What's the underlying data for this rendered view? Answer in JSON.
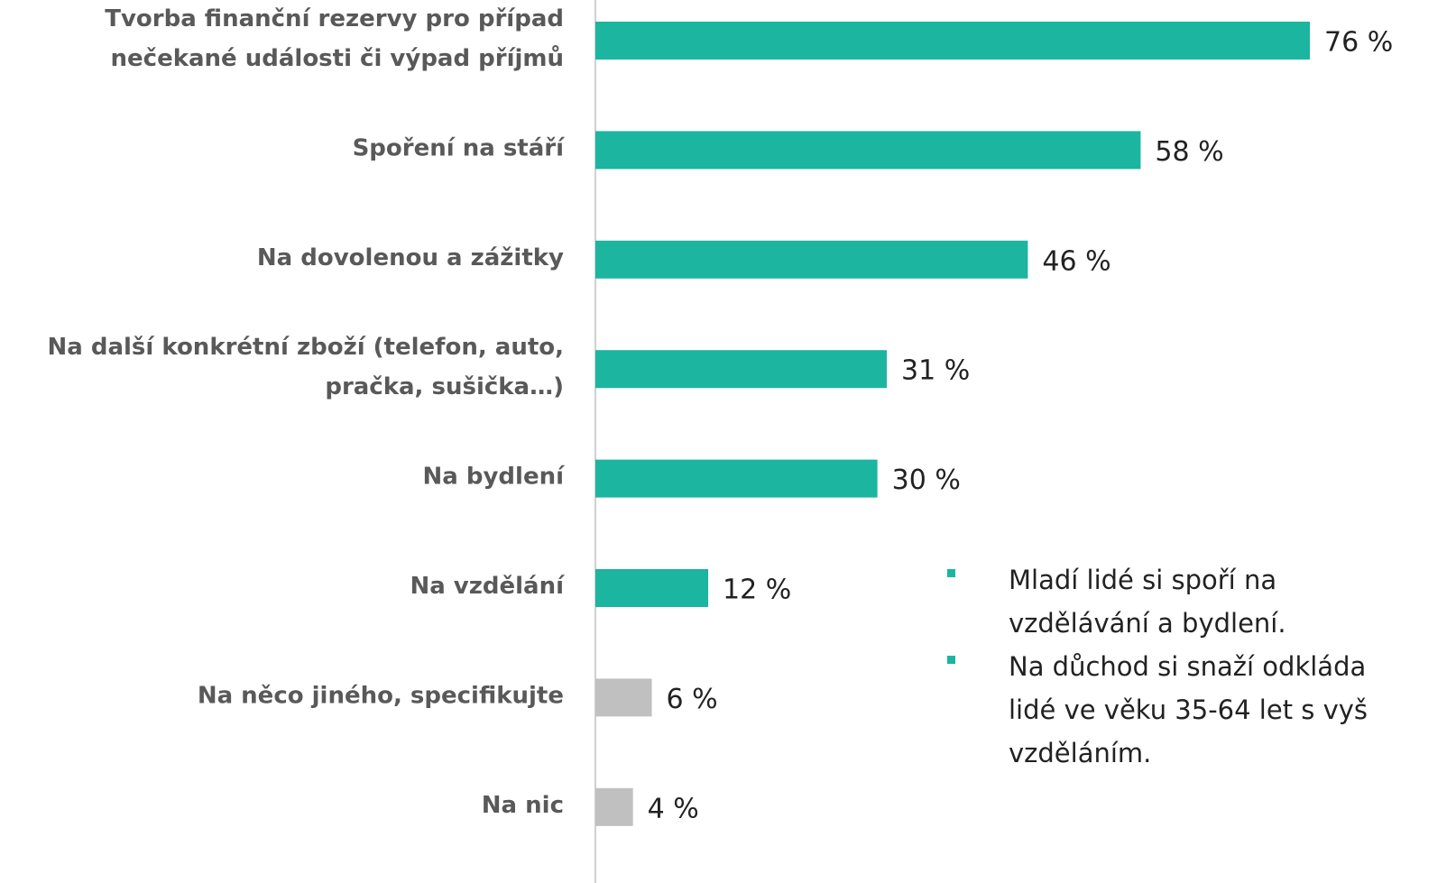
{
  "chart_data": {
    "type": "bar",
    "orientation": "horizontal",
    "categories": [
      "Tvorba finanční rezervy pro případ\nnečekané události či výpad příjmů",
      "Spoření na stáří",
      "Na dovolenou a zážitky",
      "Na další konkrétní zboží (telefon, auto,\npračka, sušička…)",
      "Na bydlení",
      "Na vzdělání",
      "Na něco jiného, specifikujte",
      "Na nic"
    ],
    "values": [
      76,
      58,
      46,
      31,
      30,
      12,
      6,
      4
    ],
    "value_labels": [
      "76 %",
      "58 %",
      "46 %",
      "31 %",
      "30 %",
      "12 %",
      "6 %",
      "4 %"
    ],
    "colors": [
      "#1bb5a0",
      "#1bb5a0",
      "#1bb5a0",
      "#1bb5a0",
      "#1bb5a0",
      "#1bb5a0",
      "#c0c0c0",
      "#c0c0c0"
    ],
    "notes": [
      [
        "Mladí lidé si spoří na",
        "vzdělávání a bydlení."
      ],
      [
        "Na důchod si snaží odkláda",
        "lidé ve věku 35-64 let s vyš",
        "vzděláním."
      ]
    ]
  }
}
